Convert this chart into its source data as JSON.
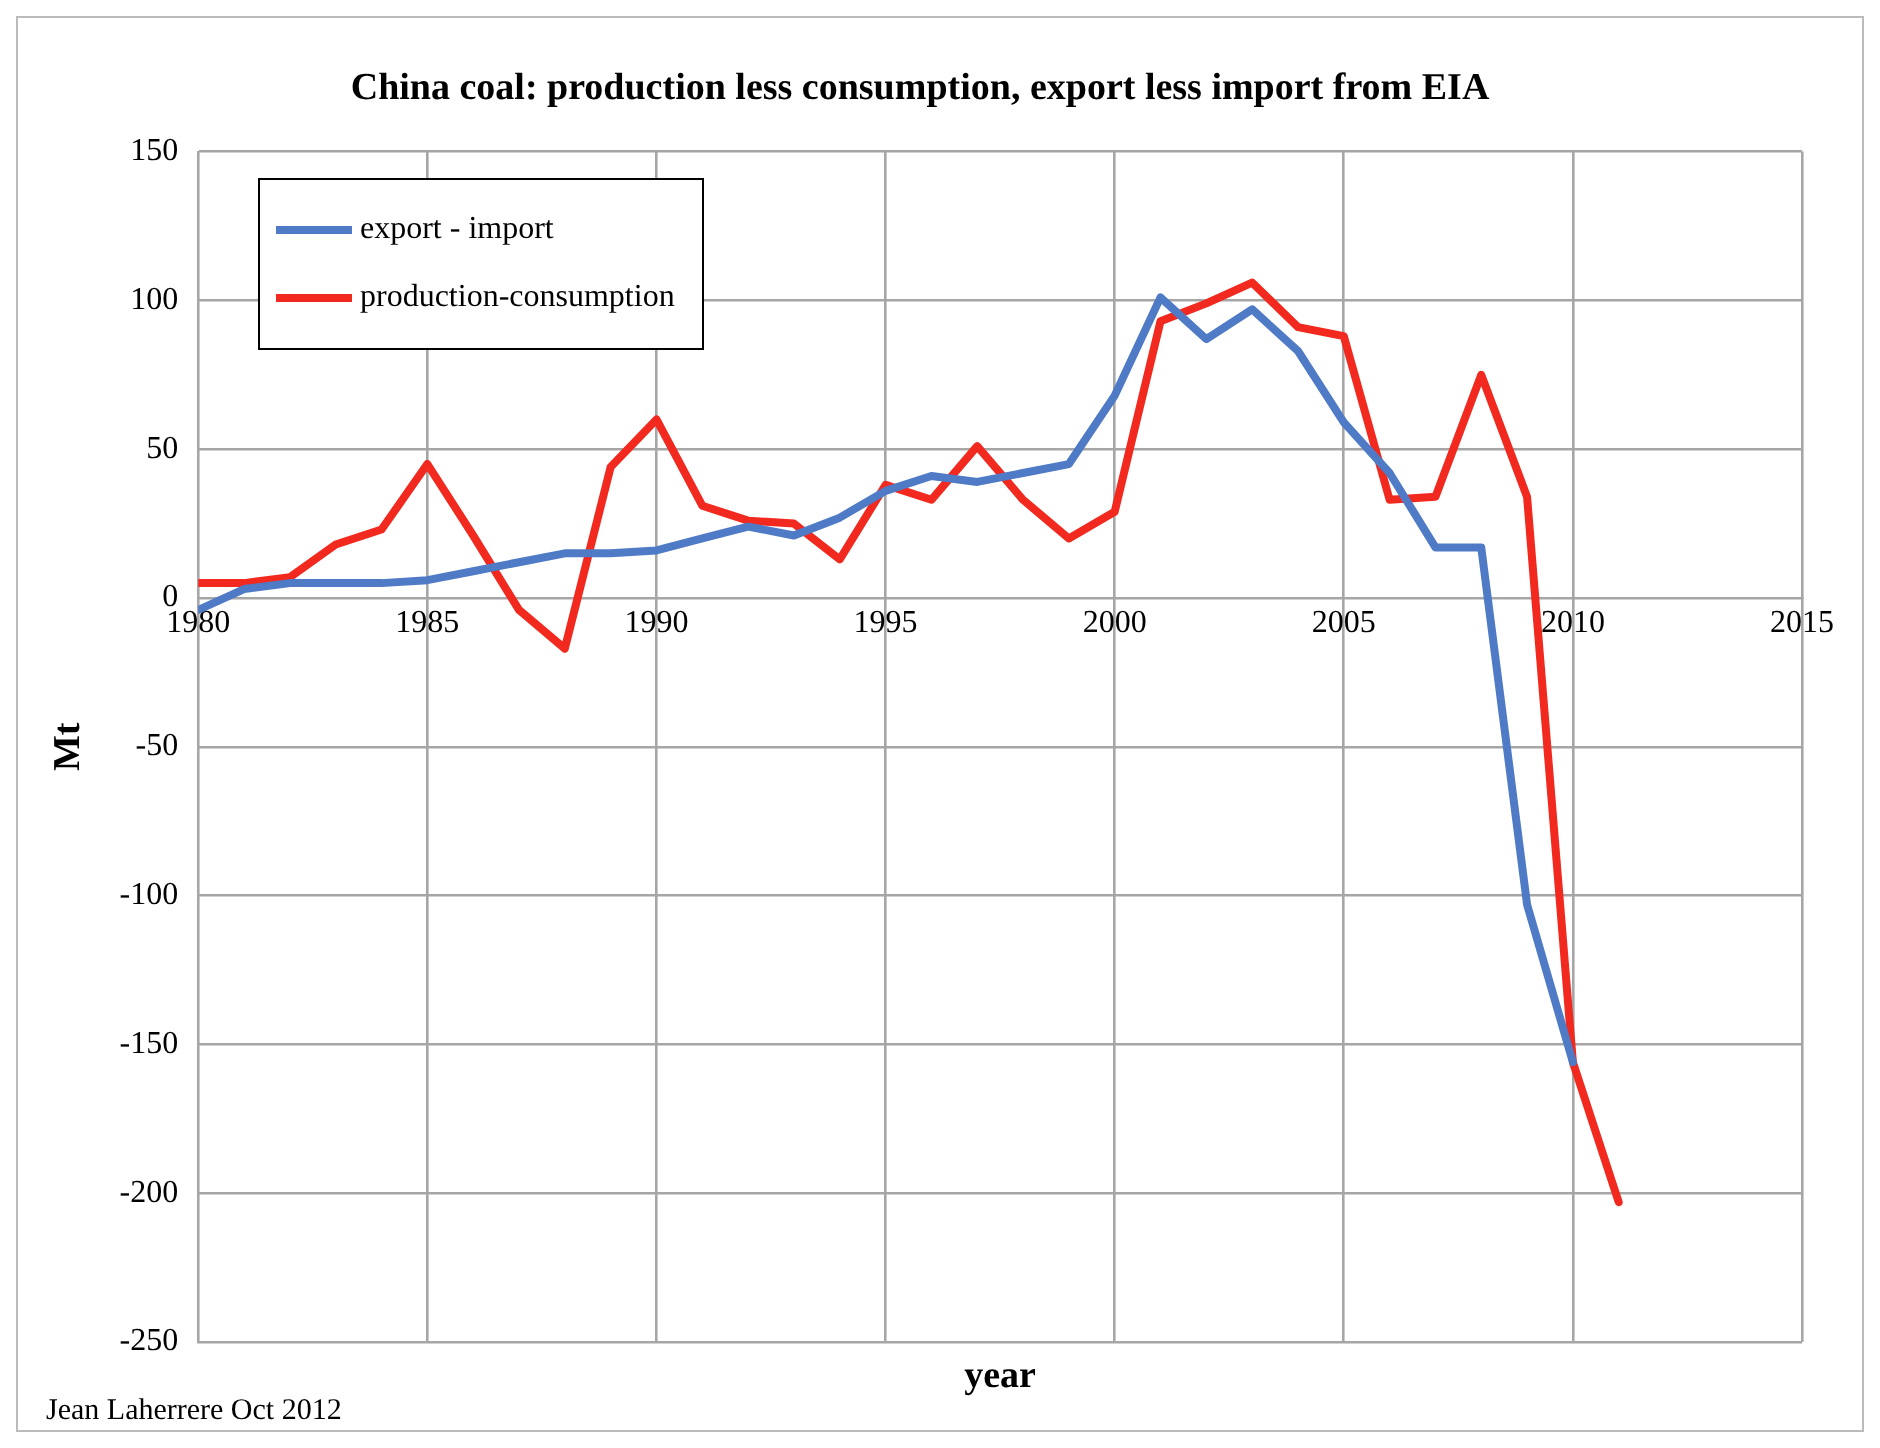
{
  "chart_data": {
    "type": "line",
    "title": "China coal: production less consumption, export less import from EIA",
    "xlabel": "year",
    "ylabel": "Mt",
    "x": [
      1980,
      1981,
      1982,
      1983,
      1984,
      1985,
      1986,
      1987,
      1988,
      1989,
      1990,
      1991,
      1992,
      1993,
      1994,
      1995,
      1996,
      1997,
      1998,
      1999,
      2000,
      2001,
      2002,
      2003,
      2004,
      2005,
      2006,
      2007,
      2008,
      2009,
      2010,
      2011
    ],
    "series": [
      {
        "name": "export - import",
        "color": "#4f7ac6",
        "values": [
          -4,
          3,
          5,
          5,
          5,
          6,
          9,
          12,
          15,
          15,
          16,
          20,
          24,
          21,
          27,
          36,
          41,
          39,
          42,
          45,
          68,
          101,
          87,
          97,
          83,
          59,
          42,
          17,
          17,
          -103,
          -156,
          null
        ]
      },
      {
        "name": "production-consumption",
        "color": "#f2291e",
        "values": [
          5,
          5,
          7,
          18,
          23,
          45,
          21,
          -4,
          -17,
          44,
          60,
          31,
          26,
          25,
          13,
          38,
          33,
          51,
          33,
          20,
          29,
          93,
          99,
          106,
          91,
          88,
          33,
          34,
          75,
          34,
          -156,
          -203
        ]
      }
    ],
    "xlim": [
      1980,
      2015
    ],
    "xticks": [
      1980,
      1985,
      1990,
      1995,
      2000,
      2005,
      2010,
      2015
    ],
    "ylim": [
      -250,
      150
    ],
    "yticks": [
      -250,
      -200,
      -150,
      -100,
      -50,
      0,
      50,
      100,
      150
    ],
    "grid": true,
    "legend": "top left",
    "marker": "none",
    "line_style": "solid",
    "annotations": [
      "Jean Laherrere Oct 2012"
    ]
  }
}
